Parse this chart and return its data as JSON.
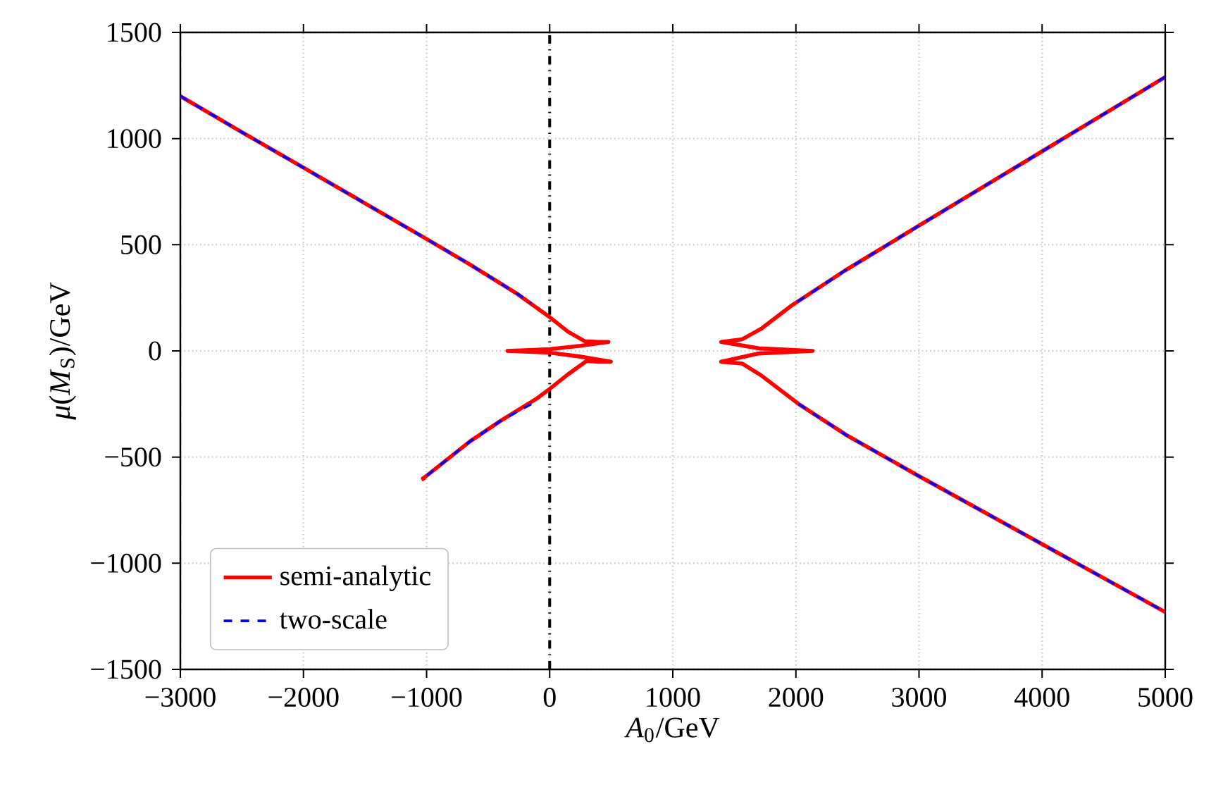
{
  "chart_data": {
    "type": "line",
    "xlabel": "*A*$_{0}$/GeV",
    "ylabel": "*μ*(*M*$_{S}$)/GeV",
    "xlim": [
      -3000,
      5000
    ],
    "xticks": [
      {
        "value": -3000,
        "label": "−3000"
      },
      {
        "value": -2000,
        "label": "−2000"
      },
      {
        "value": -1000,
        "label": "−1000"
      },
      0,
      1000,
      2000,
      3000,
      4000,
      5000
    ],
    "ylim": [
      -1500,
      1500
    ],
    "yticks": [
      {
        "value": -1500,
        "label": "−1500"
      },
      {
        "value": -1000,
        "label": "−1000"
      },
      {
        "value": -500,
        "label": "−500"
      },
      0,
      500,
      1000,
      1500
    ],
    "grid": true,
    "legend": "bottom left",
    "ref_lines": [
      {
        "axis": "x",
        "value": 0,
        "color": "#000000",
        "line_style": "dashdot"
      }
    ],
    "series": [
      {
        "name": "semi-analytic",
        "color": "#ff0000",
        "line_style": "solid",
        "x": [
          -3000,
          -2500,
          -2000,
          -1500,
          -1030,
          -650,
          -267,
          0,
          150,
          286,
          400,
          477,
          250,
          0,
          -343,
          0,
          250,
          497,
          400,
          300,
          150,
          0,
          -114,
          -400,
          -649,
          -1010,
          -1030,
          -1020,
          null,
          5000,
          4000,
          3000,
          2403,
          1966,
          1717,
          1565,
          1393,
          1700,
          2137,
          1700,
          1393,
          1565,
          1717,
          2022,
          2403,
          3000,
          4000,
          5000
        ],
        "values": [
          1200,
          1030,
          863,
          695,
          537,
          408,
          270,
          159,
          90,
          45,
          42,
          42,
          24,
          8,
          0,
          -8,
          -27,
          -51,
          -51,
          -47,
          -110,
          -179,
          -228,
          -330,
          -427,
          -593,
          -600,
          -610,
          null,
          1290,
          940,
          590,
          380,
          214,
          104,
          55,
          42,
          12,
          0,
          -12,
          -51,
          -60,
          -115,
          -250,
          -394,
          -590,
          -910,
          -1230
        ]
      },
      {
        "name": "two-scale",
        "color": "#0000ff",
        "line_style": "dashed",
        "x": [
          -3000,
          -2500,
          -2000,
          -1500,
          -1030,
          -650,
          -267,
          -150,
          null,
          -150,
          -400,
          -649,
          -1010,
          null,
          5000,
          4000,
          3000,
          2403,
          1966,
          null,
          2022,
          2403,
          3000,
          4000,
          5000
        ],
        "values": [
          1200,
          1030,
          863,
          695,
          537,
          408,
          270,
          225,
          null,
          -250,
          -330,
          -427,
          -593,
          null,
          1290,
          940,
          590,
          380,
          214,
          null,
          -250,
          -394,
          -590,
          -910,
          -1230
        ]
      }
    ]
  }
}
